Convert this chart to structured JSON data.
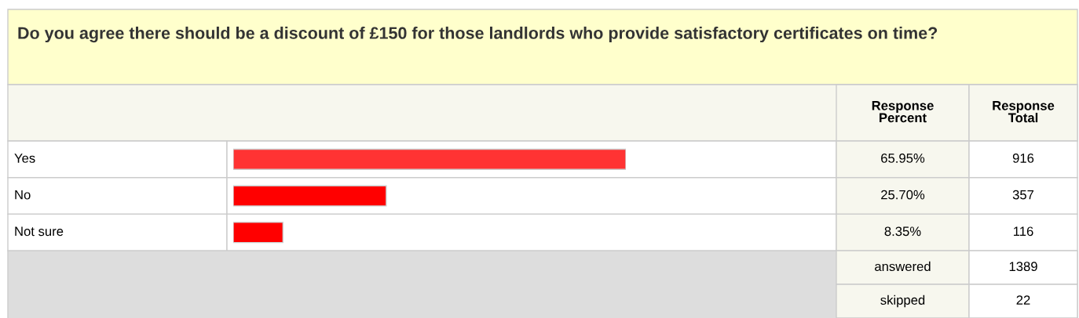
{
  "chart_data": {
    "type": "bar",
    "orientation": "horizontal",
    "title": "Do you agree there should be a discount of £150 for those landlords who provide satisfactory certificates on time?",
    "categories": [
      "Yes",
      "No",
      "Not sure"
    ],
    "values": [
      65.95,
      25.7,
      8.35
    ],
    "colors": [
      "#ff3333",
      "#ff0000",
      "#ff0000"
    ],
    "value_labels": [
      "65.95%",
      "25.70%",
      "8.35%"
    ],
    "tick_labels": false,
    "annotations": [
      "Response\nPercent",
      "Response\nTotal",
      "916",
      "357",
      "116",
      "answered",
      "1389",
      "skipped",
      "22"
    ]
  }
}
